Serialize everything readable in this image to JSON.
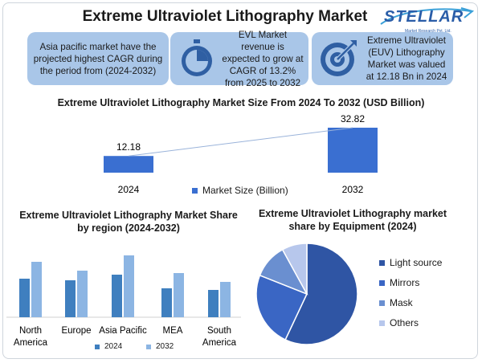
{
  "header": {
    "title": "Extreme Ultraviolet Lithography Market",
    "logo_text": "STELLAR",
    "logo_subtext": "Market Research Pvt. Ltd."
  },
  "info_boxes": [
    {
      "text": "Asia pacific market have the projected highest CAGR during the period from (2024-2032)",
      "icon": "none"
    },
    {
      "text": "EVL Market revenue is expected to grow at CAGR of 13.2% from 2025 to 2032",
      "icon": "stopwatch-icon"
    },
    {
      "text": "Extreme Ultraviolet (EUV) Lithography Market was valued at 12.18 Bn in 2024",
      "icon": "target-icon"
    }
  ],
  "colors": {
    "info_box": "#a9c6e8",
    "bar_main": "#3a6fd1",
    "series_2024": "#3f7fbf",
    "series_2032": "#8cb5e3",
    "pie_light_source": "#2f55a4",
    "pie_mirrors": "#3a66c4",
    "pie_mask": "#6a8fd0",
    "pie_others": "#b7c7ec"
  },
  "chart_data": [
    {
      "type": "bar",
      "title": "Extreme Ultraviolet Lithography Market Size From 2024 To 2032 (USD Billion)",
      "categories": [
        "2024",
        "2032"
      ],
      "series": [
        {
          "name": "Market Size (Billion)",
          "values": [
            12.18,
            32.82
          ]
        }
      ],
      "data_labels": [
        "12.18",
        "32.82"
      ],
      "legend_position": "bottom",
      "grid": false
    },
    {
      "type": "bar",
      "title": "Extreme Ultraviolet Lithography Market Share by region (2024-2032)",
      "categories": [
        "North America",
        "Europe",
        "Asia Pacific",
        "MEA",
        "South America"
      ],
      "series": [
        {
          "name": "2024",
          "values": [
            48,
            46,
            53,
            36,
            34
          ]
        },
        {
          "name": "2032",
          "values": [
            69,
            58,
            77,
            55,
            44
          ]
        }
      ],
      "legend_position": "bottom",
      "grid": false
    },
    {
      "type": "pie",
      "title": "Extreme Ultraviolet Lithography market share by Equipment (2024)",
      "labels": [
        "Light source",
        "Mirrors",
        "Mask",
        "Others"
      ],
      "values": [
        57,
        24,
        11,
        8
      ],
      "legend_position": "right"
    }
  ]
}
